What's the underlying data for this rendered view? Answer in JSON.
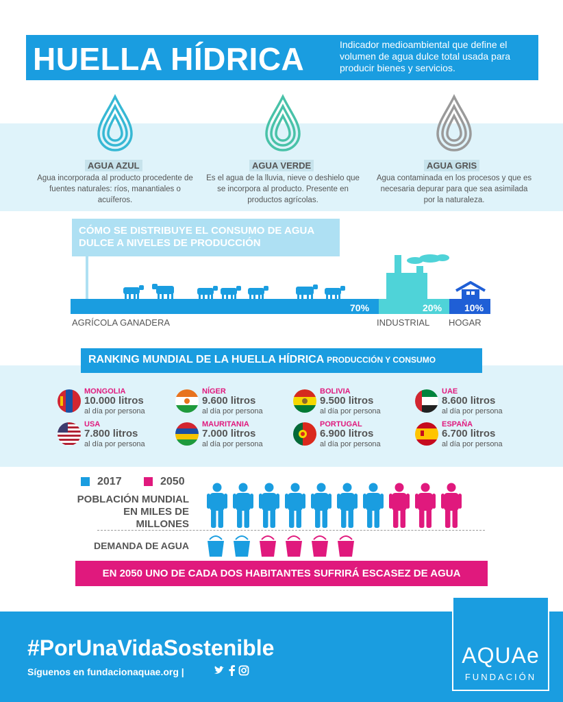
{
  "header": {
    "title": "HUELLA HÍDRICA",
    "description": "Indicador medioambiental que define el volumen de agua dulce total usada para producir bienes y servicios."
  },
  "water_types": [
    {
      "label": "AGUA AZUL",
      "description": "Agua incorporada al producto procedente de fuentes naturales: ríos, manantiales o acuíferos.",
      "color": "#37b8d4",
      "icon": "water-drop-icon"
    },
    {
      "label": "AGUA VERDE",
      "description": "Es el agua de la lluvia, nieve o deshielo que se incorpora al producto. Presente en productos agrícolas.",
      "color": "#49c2a8",
      "icon": "water-drop-icon"
    },
    {
      "label": "AGUA GRIS",
      "description": "Agua contaminada en los procesos y que es necesaria depurar para que sea asimilada por la naturaleza.",
      "color": "#9a9a9a",
      "icon": "water-drop-icon"
    }
  ],
  "distribution": {
    "title": "CÓMO SE DISTRIBUYE EL CONSUMO DE AGUA DULCE A NIVELES DE PRODUCCIÓN",
    "segments": [
      {
        "label": "AGRÍCOLA GANADERA",
        "percent_label": "70%",
        "value": 70,
        "color": "#1a9de0",
        "icon": "cow-icon"
      },
      {
        "label": "INDUSTRIAL",
        "percent_label": "20%",
        "value": 20,
        "color": "#4fd3d8",
        "icon": "factory-icon"
      },
      {
        "label": "HOGAR",
        "percent_label": "10%",
        "value": 10,
        "color": "#1f5fd6",
        "icon": "house-icon"
      }
    ]
  },
  "ranking": {
    "title": "RANKING MUNDIAL DE LA HUELLA HÍDRICA",
    "subtitle": "PRODUCCIÓN Y CONSUMO",
    "unit": "al día por persona",
    "items": [
      {
        "country": "MONGOLIA",
        "value": "10.000 litros",
        "flag": "mongolia-flag-icon"
      },
      {
        "country": "NÍGER",
        "value": "9.600 litros",
        "flag": "niger-flag-icon"
      },
      {
        "country": "BOLIVIA",
        "value": "9.500 litros",
        "flag": "bolivia-flag-icon"
      },
      {
        "country": "UAE",
        "value": "8.600 litros",
        "flag": "uae-flag-icon"
      },
      {
        "country": "USA",
        "value": "7.800 litros",
        "flag": "usa-flag-icon"
      },
      {
        "country": "MAURITANIA",
        "value": "7.000 litros",
        "flag": "mauritania-flag-icon"
      },
      {
        "country": "PORTUGAL",
        "value": "6.900 litros",
        "flag": "portugal-flag-icon"
      },
      {
        "country": "ESPAÑA",
        "value": "6.700 litros",
        "flag": "spain-flag-icon"
      }
    ]
  },
  "population": {
    "legend": [
      {
        "label": "2017",
        "color": "#1a9de0"
      },
      {
        "label": "2050",
        "color": "#e0197d"
      }
    ],
    "population_label": "POBLACIÓN MUNDIAL EN MILES DE MILLONES",
    "population_2017_count": 7,
    "population_2050_extra": 3,
    "demand_label": "DEMANDA DE AGUA",
    "demand_2017_count": 2,
    "demand_2050_extra": 4,
    "warning": "EN 2050 UNO DE CADA DOS HABITANTES SUFRIRÁ ESCASEZ DE AGUA"
  },
  "footer": {
    "hashtag": "#PorUnaVidaSostenible",
    "follow_text": "Síguenos en fundacionaquae.org |",
    "social": [
      "twitter-icon",
      "facebook-icon",
      "instagram-icon"
    ],
    "logo_main": "AQUAe",
    "logo_sub": "FUNDACIÓN"
  }
}
